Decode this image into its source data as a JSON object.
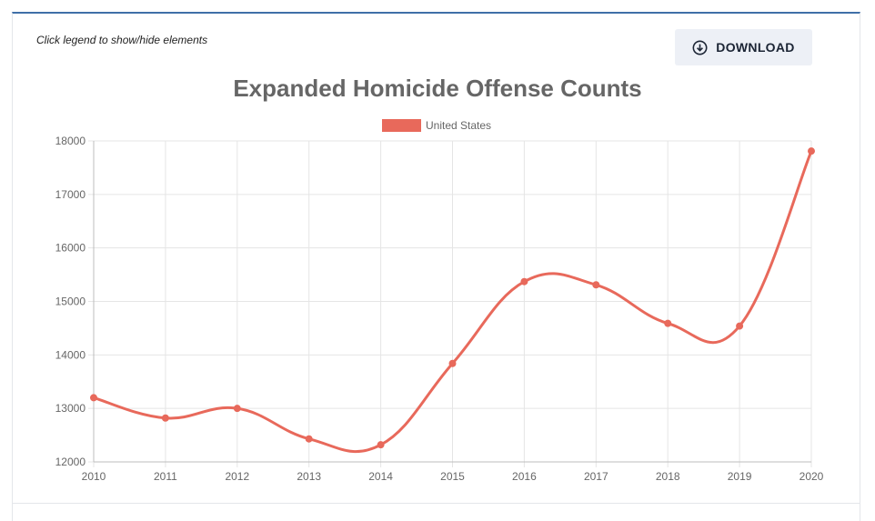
{
  "hint": "Click legend to show/hide elements",
  "download": {
    "label": "DOWNLOAD",
    "icon": "download-circle-icon"
  },
  "colors": {
    "series": "#e8695b",
    "button_bg": "#edf0f6",
    "accent_border": "#3f6fa8"
  },
  "chart_data": {
    "type": "line",
    "title": "Expanded Homicide Offense Counts",
    "x": [
      "2010",
      "2011",
      "2012",
      "2013",
      "2014",
      "2015",
      "2016",
      "2017",
      "2018",
      "2019",
      "2020"
    ],
    "series": [
      {
        "name": "United States",
        "values": [
          13200,
          12820,
          13000,
          12430,
          12320,
          13840,
          15370,
          15310,
          14590,
          14540,
          17810
        ]
      }
    ],
    "y_ticks": [
      "12000",
      "13000",
      "14000",
      "15000",
      "16000",
      "17000",
      "18000"
    ],
    "ylim": [
      12000,
      18000
    ],
    "xlabel": "",
    "ylabel": "",
    "grid": true,
    "legend": "top-center"
  }
}
